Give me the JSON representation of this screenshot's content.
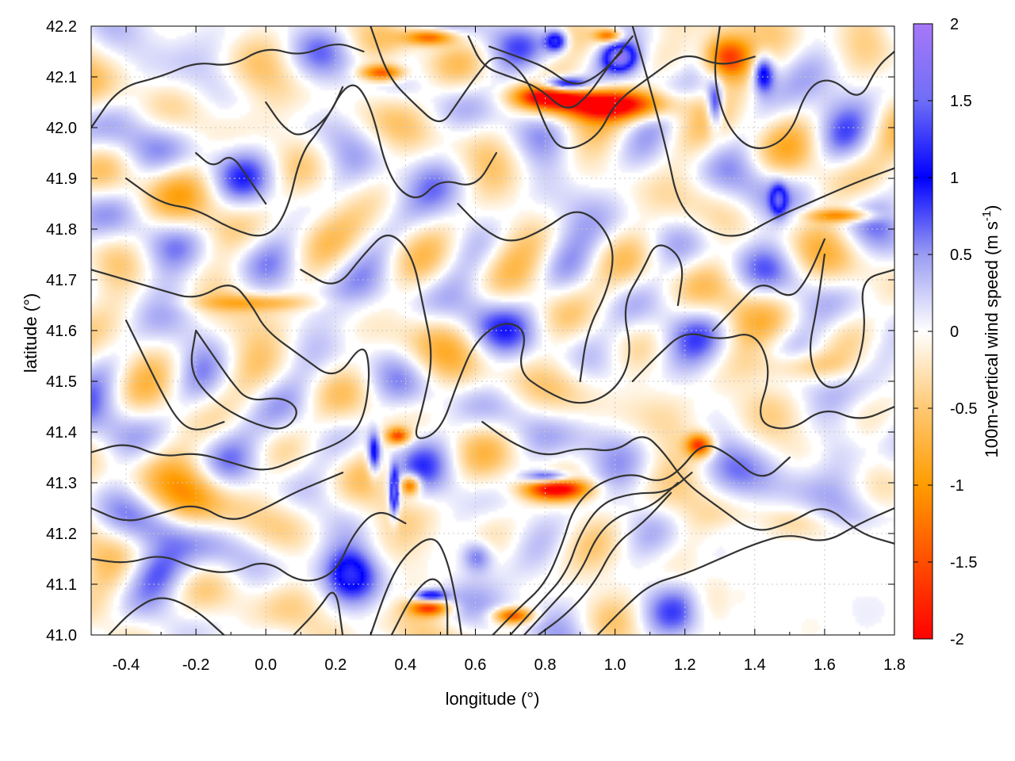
{
  "chart_data": {
    "type": "heatmap",
    "title": "",
    "xlabel": "longitude (°)",
    "ylabel": "latitude (°)",
    "colorbar_label_main": "100m-vertical wind speed (m s",
    "colorbar_label_sup": "-1",
    "colorbar_label_tail": ")",
    "xlim": [
      -0.5,
      1.8
    ],
    "ylim": [
      41.0,
      42.2
    ],
    "x_ticks": [
      -0.4,
      -0.2,
      0.0,
      0.2,
      0.4,
      0.6,
      0.8,
      1.0,
      1.2,
      1.4,
      1.6,
      1.8
    ],
    "x_tick_labels": [
      "-0.4",
      "-0.2",
      "0.0",
      "0.2",
      "0.4",
      "0.6",
      "0.8",
      "1.0",
      "1.2",
      "1.4",
      "1.6",
      "1.8"
    ],
    "y_ticks": [
      41.0,
      41.1,
      41.2,
      41.3,
      41.4,
      41.5,
      41.6,
      41.7,
      41.8,
      41.9,
      42.0,
      42.1,
      42.2
    ],
    "y_tick_labels": [
      "41.0",
      "41.1",
      "41.2",
      "41.3",
      "41.4",
      "41.5",
      "41.6",
      "41.7",
      "41.8",
      "41.9",
      "42.0",
      "42.1",
      "42.2"
    ],
    "color_range": [
      -2,
      2
    ],
    "colorbar_ticks": [
      2,
      1.5,
      1,
      0.5,
      0,
      -0.5,
      -1,
      -1.5,
      -2
    ],
    "colorbar_tick_labels": [
      "2",
      "1.5",
      "1",
      "0.5",
      "0",
      "-0.5",
      "-1",
      "-1.5",
      "-2"
    ],
    "colormap": [
      {
        "v": -2.0,
        "color": "#ff0000"
      },
      {
        "v": -1.0,
        "color": "#ff9c00"
      },
      {
        "v": -0.5,
        "color": "#ffc873"
      },
      {
        "v": 0.0,
        "color": "#ffffff"
      },
      {
        "v": 0.5,
        "color": "#9a9cf2"
      },
      {
        "v": 1.0,
        "color": "#0000ff"
      },
      {
        "v": 1.5,
        "color": "#6f6ef7"
      },
      {
        "v": 2.0,
        "color": "#a678f7"
      }
    ],
    "grid": true,
    "contours": [
      [
        [
          -0.5,
          42.0
        ],
        [
          -0.42,
          42.08
        ],
        [
          -0.3,
          42.1
        ],
        [
          -0.2,
          42.13
        ],
        [
          -0.1,
          42.12
        ],
        [
          0.0,
          42.16
        ],
        [
          0.1,
          42.14
        ],
        [
          0.2,
          42.17
        ],
        [
          0.28,
          42.15
        ]
      ],
      [
        [
          -0.4,
          41.9
        ],
        [
          -0.3,
          41.85
        ],
        [
          -0.2,
          41.84
        ],
        [
          -0.1,
          41.8
        ],
        [
          0.0,
          41.78
        ],
        [
          0.06,
          41.83
        ],
        [
          0.1,
          41.95
        ],
        [
          0.16,
          42.0
        ],
        [
          0.24,
          42.1
        ],
        [
          0.3,
          42.05
        ],
        [
          0.35,
          41.9
        ],
        [
          0.43,
          41.85
        ],
        [
          0.5,
          41.9
        ],
        [
          0.6,
          41.88
        ],
        [
          0.66,
          41.95
        ]
      ],
      [
        [
          -0.5,
          41.72
        ],
        [
          -0.4,
          41.7
        ],
        [
          -0.3,
          41.68
        ],
        [
          -0.2,
          41.66
        ],
        [
          -0.1,
          41.7
        ],
        [
          -0.04,
          41.65
        ],
        [
          0.0,
          41.6
        ],
        [
          0.1,
          41.55
        ],
        [
          0.2,
          41.5
        ],
        [
          0.28,
          41.58
        ],
        [
          0.3,
          41.52
        ],
        [
          0.28,
          41.42
        ],
        [
          0.22,
          41.38
        ],
        [
          0.1,
          41.35
        ],
        [
          0.0,
          41.32
        ],
        [
          -0.1,
          41.34
        ],
        [
          -0.2,
          41.36
        ],
        [
          -0.3,
          41.35
        ],
        [
          -0.4,
          41.38
        ],
        [
          -0.5,
          41.36
        ]
      ],
      [
        [
          -0.2,
          41.6
        ],
        [
          -0.15,
          41.55
        ],
        [
          -0.1,
          41.5
        ],
        [
          -0.05,
          41.46
        ],
        [
          0.05,
          41.47
        ],
        [
          0.1,
          41.44
        ],
        [
          0.05,
          41.4
        ],
        [
          -0.05,
          41.42
        ],
        [
          -0.15,
          41.46
        ],
        [
          -0.22,
          41.52
        ],
        [
          -0.2,
          41.6
        ]
      ],
      [
        [
          0.1,
          41.72
        ],
        [
          0.2,
          41.68
        ],
        [
          0.28,
          41.75
        ],
        [
          0.35,
          41.8
        ],
        [
          0.42,
          41.75
        ],
        [
          0.45,
          41.65
        ],
        [
          0.48,
          41.55
        ],
        [
          0.45,
          41.45
        ],
        [
          0.42,
          41.38
        ],
        [
          0.5,
          41.4
        ],
        [
          0.55,
          41.5
        ],
        [
          0.6,
          41.58
        ],
        [
          0.68,
          41.62
        ],
        [
          0.75,
          41.6
        ],
        [
          0.72,
          41.52
        ],
        [
          0.8,
          41.48
        ],
        [
          0.9,
          41.45
        ],
        [
          1.0,
          41.48
        ],
        [
          1.05,
          41.55
        ],
        [
          1.02,
          41.65
        ],
        [
          1.08,
          41.72
        ],
        [
          1.12,
          41.78
        ],
        [
          1.2,
          41.74
        ],
        [
          1.18,
          41.65
        ]
      ],
      [
        [
          0.55,
          41.85
        ],
        [
          0.62,
          41.8
        ],
        [
          0.7,
          41.77
        ],
        [
          0.8,
          41.8
        ],
        [
          0.88,
          41.84
        ],
        [
          0.95,
          41.82
        ],
        [
          1.0,
          41.76
        ],
        [
          0.98,
          41.68
        ],
        [
          0.92,
          41.6
        ],
        [
          0.9,
          41.5
        ]
      ],
      [
        [
          0.3,
          42.2
        ],
        [
          0.35,
          42.1
        ],
        [
          0.42,
          42.05
        ],
        [
          0.5,
          42.0
        ],
        [
          0.55,
          42.05
        ],
        [
          0.6,
          42.1
        ],
        [
          0.66,
          42.15
        ],
        [
          0.75,
          42.1
        ],
        [
          0.8,
          42.0
        ],
        [
          0.85,
          41.95
        ],
        [
          0.95,
          41.98
        ],
        [
          1.0,
          42.05
        ],
        [
          1.1,
          42.1
        ],
        [
          1.2,
          42.15
        ],
        [
          1.3,
          42.12
        ],
        [
          1.4,
          42.14
        ]
      ],
      [
        [
          0.58,
          42.18
        ],
        [
          0.62,
          42.12
        ],
        [
          0.7,
          42.1
        ],
        [
          0.78,
          42.08
        ],
        [
          0.86,
          42.03
        ],
        [
          0.92,
          42.06
        ],
        [
          0.98,
          42.12
        ],
        [
          1.05,
          42.18
        ]
      ],
      [
        [
          0.64,
          42.16
        ],
        [
          0.72,
          42.14
        ],
        [
          0.8,
          42.12
        ],
        [
          0.88,
          42.08
        ],
        [
          0.95,
          42.1
        ],
        [
          1.02,
          42.15
        ]
      ],
      [
        [
          1.05,
          42.2
        ],
        [
          1.1,
          42.08
        ],
        [
          1.15,
          41.95
        ],
        [
          1.18,
          41.85
        ],
        [
          1.25,
          41.8
        ],
        [
          1.35,
          41.78
        ],
        [
          1.45,
          41.82
        ],
        [
          1.55,
          41.85
        ],
        [
          1.65,
          41.88
        ],
        [
          1.72,
          41.9
        ],
        [
          1.8,
          41.92
        ]
      ],
      [
        [
          1.3,
          42.2
        ],
        [
          1.28,
          42.1
        ],
        [
          1.32,
          42.0
        ],
        [
          1.4,
          41.95
        ],
        [
          1.5,
          41.98
        ],
        [
          1.55,
          42.08
        ],
        [
          1.62,
          42.1
        ],
        [
          1.7,
          42.05
        ],
        [
          1.75,
          42.12
        ],
        [
          1.8,
          42.15
        ]
      ],
      [
        [
          1.6,
          41.75
        ],
        [
          1.58,
          41.65
        ],
        [
          1.55,
          41.55
        ],
        [
          1.6,
          41.48
        ],
        [
          1.68,
          41.5
        ],
        [
          1.72,
          41.6
        ],
        [
          1.7,
          41.7
        ],
        [
          1.8,
          41.72
        ]
      ],
      [
        [
          1.05,
          41.5
        ],
        [
          1.12,
          41.55
        ],
        [
          1.2,
          41.6
        ],
        [
          1.3,
          41.58
        ],
        [
          1.4,
          41.6
        ],
        [
          1.45,
          41.52
        ],
        [
          1.4,
          41.42
        ],
        [
          1.5,
          41.4
        ],
        [
          1.6,
          41.45
        ],
        [
          1.7,
          41.42
        ],
        [
          1.8,
          41.45
        ]
      ],
      [
        [
          0.62,
          41.42
        ],
        [
          0.7,
          41.38
        ],
        [
          0.8,
          41.35
        ],
        [
          0.9,
          41.37
        ],
        [
          1.0,
          41.36
        ],
        [
          1.08,
          41.4
        ],
        [
          1.14,
          41.36
        ],
        [
          1.2,
          41.3
        ],
        [
          1.3,
          41.25
        ],
        [
          1.4,
          41.2
        ],
        [
          1.5,
          41.22
        ],
        [
          1.6,
          41.26
        ],
        [
          1.7,
          41.2
        ],
        [
          1.8,
          41.18
        ]
      ],
      [
        [
          0.65,
          41.0
        ],
        [
          0.72,
          41.05
        ],
        [
          0.8,
          41.1
        ],
        [
          0.85,
          41.18
        ],
        [
          0.88,
          41.25
        ],
        [
          0.95,
          41.3
        ],
        [
          1.05,
          41.32
        ],
        [
          1.12,
          41.3
        ],
        [
          1.18,
          41.32
        ],
        [
          1.25,
          41.38
        ],
        [
          1.32,
          41.36
        ],
        [
          1.42,
          41.3
        ],
        [
          1.5,
          41.35
        ]
      ],
      [
        [
          0.7,
          41.0
        ],
        [
          0.78,
          41.06
        ],
        [
          0.86,
          41.12
        ],
        [
          0.9,
          41.2
        ],
        [
          0.96,
          41.26
        ],
        [
          1.05,
          41.28
        ],
        [
          1.15,
          41.28
        ],
        [
          1.22,
          41.32
        ]
      ],
      [
        [
          0.74,
          41.0
        ],
        [
          0.82,
          41.06
        ],
        [
          0.9,
          41.12
        ],
        [
          0.95,
          41.2
        ],
        [
          1.02,
          41.24
        ],
        [
          1.1,
          41.25
        ],
        [
          1.18,
          41.3
        ]
      ],
      [
        [
          0.78,
          41.0
        ],
        [
          0.86,
          41.04
        ],
        [
          0.94,
          41.1
        ],
        [
          1.0,
          41.18
        ],
        [
          1.08,
          41.22
        ],
        [
          1.16,
          41.28
        ]
      ],
      [
        [
          0.95,
          41.0
        ],
        [
          1.02,
          41.05
        ],
        [
          1.1,
          41.1
        ],
        [
          1.2,
          41.12
        ],
        [
          1.3,
          41.15
        ],
        [
          1.4,
          41.18
        ],
        [
          1.5,
          41.2
        ],
        [
          1.6,
          41.18
        ],
        [
          1.7,
          41.22
        ],
        [
          1.8,
          41.25
        ]
      ],
      [
        [
          0.3,
          41.0
        ],
        [
          0.35,
          41.1
        ],
        [
          0.4,
          41.16
        ],
        [
          0.48,
          41.2
        ],
        [
          0.52,
          41.15
        ],
        [
          0.55,
          41.05
        ],
        [
          0.56,
          41.0
        ]
      ],
      [
        [
          0.36,
          41.0
        ],
        [
          0.42,
          41.08
        ],
        [
          0.48,
          41.12
        ],
        [
          0.52,
          41.08
        ],
        [
          0.52,
          41.0
        ]
      ],
      [
        [
          -0.5,
          41.15
        ],
        [
          -0.4,
          41.14
        ],
        [
          -0.3,
          41.16
        ],
        [
          -0.2,
          41.13
        ],
        [
          -0.1,
          41.12
        ],
        [
          0.0,
          41.15
        ],
        [
          0.1,
          41.1
        ],
        [
          0.2,
          41.12
        ],
        [
          0.25,
          41.2
        ],
        [
          0.32,
          41.25
        ],
        [
          0.4,
          41.22
        ]
      ],
      [
        [
          -0.5,
          41.25
        ],
        [
          -0.4,
          41.22
        ],
        [
          -0.3,
          41.24
        ],
        [
          -0.2,
          41.26
        ],
        [
          -0.1,
          41.22
        ],
        [
          0.0,
          41.25
        ],
        [
          0.08,
          41.28
        ],
        [
          0.15,
          41.3
        ],
        [
          0.22,
          41.32
        ]
      ],
      [
        [
          -0.45,
          41.0
        ],
        [
          -0.38,
          41.05
        ],
        [
          -0.3,
          41.08
        ],
        [
          -0.2,
          41.05
        ],
        [
          -0.12,
          41.0
        ]
      ],
      [
        [
          0.08,
          41.0
        ],
        [
          0.15,
          41.05
        ],
        [
          0.2,
          41.1
        ],
        [
          0.22,
          41.0
        ]
      ],
      [
        [
          -0.4,
          41.62
        ],
        [
          -0.35,
          41.55
        ],
        [
          -0.3,
          41.48
        ],
        [
          -0.25,
          41.42
        ],
        [
          -0.2,
          41.4
        ],
        [
          -0.12,
          41.42
        ]
      ],
      [
        [
          0.0,
          42.05
        ],
        [
          0.05,
          42.0
        ],
        [
          0.1,
          41.98
        ],
        [
          0.18,
          42.02
        ],
        [
          0.22,
          42.08
        ]
      ],
      [
        [
          -0.2,
          41.95
        ],
        [
          -0.15,
          41.92
        ],
        [
          -0.1,
          41.95
        ],
        [
          -0.05,
          41.9
        ],
        [
          0.0,
          41.85
        ]
      ],
      [
        [
          1.28,
          41.6
        ],
        [
          1.35,
          41.65
        ],
        [
          1.42,
          41.7
        ],
        [
          1.5,
          41.66
        ],
        [
          1.55,
          41.7
        ],
        [
          1.6,
          41.78
        ]
      ]
    ]
  }
}
